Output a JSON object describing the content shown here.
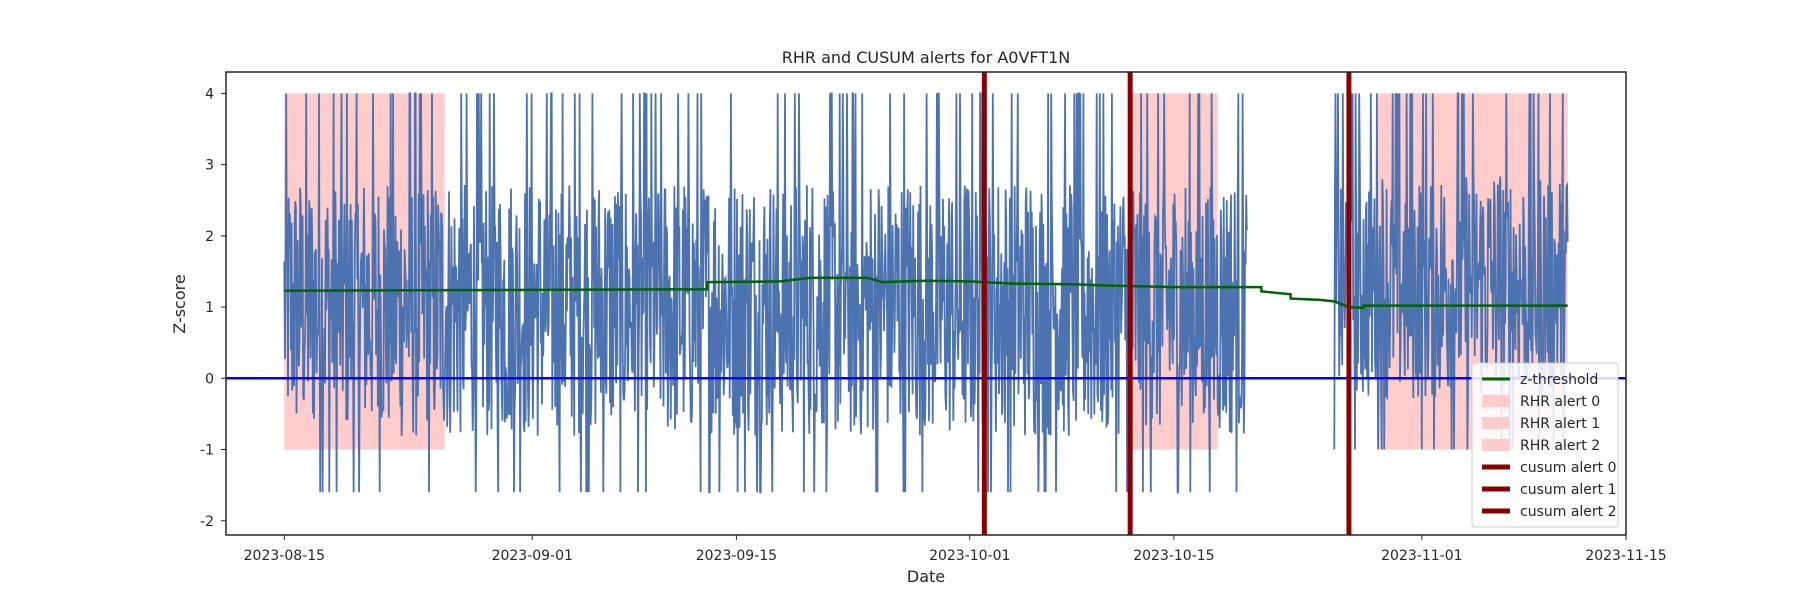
{
  "chart_data": {
    "type": "line",
    "title": "RHR and CUSUM alerts for A0VFT1N",
    "xlabel": "Date",
    "ylabel": "Z-score",
    "xlim": [
      "2023-08-11",
      "2023-11-15"
    ],
    "ylim": [
      -2.2,
      4.3
    ],
    "x_ticks": [
      "2023-08-15",
      "2023-09-01",
      "2023-09-15",
      "2023-10-01",
      "2023-10-15",
      "2023-11-01",
      "2023-11-15"
    ],
    "y_ticks": [
      -2,
      -1,
      0,
      1,
      2,
      3,
      4
    ],
    "grid": false,
    "legend_position": "bottom-right",
    "zero_line": {
      "y": 0,
      "color": "#0000ff"
    },
    "series": [
      {
        "name": "z-threshold",
        "kind": "step-line",
        "color": "#006400",
        "points": [
          [
            "2023-08-15",
            1.23
          ],
          [
            "2023-09-13",
            1.25
          ],
          [
            "2023-09-13",
            1.35
          ],
          [
            "2023-09-18",
            1.36
          ],
          [
            "2023-09-20",
            1.41
          ],
          [
            "2023-09-24",
            1.41
          ],
          [
            "2023-09-25",
            1.35
          ],
          [
            "2023-09-28",
            1.37
          ],
          [
            "2023-10-01",
            1.36
          ],
          [
            "2023-10-04",
            1.33
          ],
          [
            "2023-10-08",
            1.32
          ],
          [
            "2023-10-11",
            1.3
          ],
          [
            "2023-10-15",
            1.28
          ],
          [
            "2023-10-21",
            1.28
          ],
          [
            "2023-10-21",
            1.22
          ],
          [
            "2023-10-23",
            1.18
          ],
          [
            "2023-10-23",
            1.12
          ],
          [
            "2023-10-25",
            1.1
          ],
          [
            "2023-10-26",
            1.08
          ],
          [
            "2023-10-27",
            1.0
          ],
          [
            "2023-10-28",
            0.99
          ],
          [
            "2023-10-28",
            1.02
          ],
          [
            "2023-11-11",
            1.02
          ]
        ]
      },
      {
        "name": "",
        "kind": "noisy-line",
        "color": "#4c72b0",
        "segments": [
          {
            "start": "2023-08-15",
            "end": "2023-10-20",
            "y_min": -1.6,
            "y_max": 4.0
          },
          {
            "start": "2023-10-26",
            "end": "2023-11-11",
            "y_min": -1.0,
            "y_max": 4.0
          }
        ]
      }
    ],
    "rhr_alerts": [
      {
        "name": "RHR alert 0",
        "start": "2023-08-15",
        "end": "2023-08-26",
        "y_min": -1,
        "y_max": 4,
        "color": "#ffcccc"
      },
      {
        "name": "RHR alert 1",
        "start": "2023-10-12",
        "end": "2023-10-18",
        "y_min": -1,
        "y_max": 4,
        "color": "#ffcccc"
      },
      {
        "name": "RHR alert 2",
        "start": "2023-10-29",
        "end": "2023-11-11",
        "y_min": -1,
        "y_max": 4,
        "color": "#ffcccc"
      }
    ],
    "cusum_alerts": [
      {
        "name": "cusum alert 0",
        "x": "2023-10-02",
        "color": "#8b0000"
      },
      {
        "name": "cusum alert 1",
        "x": "2023-10-12",
        "color": "#8b0000"
      },
      {
        "name": "cusum alert 2",
        "x": "2023-10-27",
        "color": "#8b0000"
      }
    ]
  }
}
